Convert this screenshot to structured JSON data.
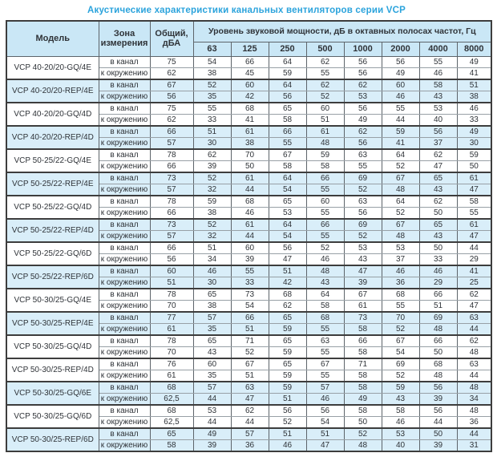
{
  "title": "Акустические характеристики канальных вентиляторов  серии VCP",
  "colors": {
    "title_blue": "#2ba3dc",
    "header_bg": "#cae7f6",
    "shaded_row_bg": "#d9eef9",
    "border_dark": "#3d3d3d",
    "text": "#2f3338"
  },
  "table": {
    "headers": {
      "model": "Модель",
      "zone": "Зона измерения",
      "total": "Общий, дБА",
      "spectrum": "Уровень звуковой мощности, дБ в октавных полосах частот, Гц",
      "frequencies": [
        "63",
        "125",
        "250",
        "500",
        "1000",
        "2000",
        "4000",
        "8000"
      ]
    },
    "models": [
      {
        "name": "VCP 40-20/20-GQ/4E",
        "shaded": false,
        "rows": [
          {
            "zone": "в канал",
            "total": "75",
            "values": [
              "54",
              "66",
              "64",
              "62",
              "56",
              "56",
              "55",
              "49"
            ]
          },
          {
            "zone": "к окружению",
            "total": "62",
            "values": [
              "38",
              "45",
              "59",
              "55",
              "56",
              "49",
              "46",
              "41"
            ]
          }
        ]
      },
      {
        "name": "VCP 40-20/20-REP/4E",
        "shaded": true,
        "rows": [
          {
            "zone": "в канал",
            "total": "67",
            "values": [
              "52",
              "60",
              "64",
              "62",
              "62",
              "60",
              "58",
              "51"
            ]
          },
          {
            "zone": "к окружению",
            "total": "56",
            "values": [
              "35",
              "42",
              "56",
              "52",
              "53",
              "46",
              "43",
              "38"
            ]
          }
        ]
      },
      {
        "name": "VCP 40-20/20-GQ/4D",
        "shaded": false,
        "rows": [
          {
            "zone": "в канал",
            "total": "75",
            "values": [
              "55",
              "68",
              "65",
              "60",
              "56",
              "55",
              "53",
              "46"
            ]
          },
          {
            "zone": "к окружению",
            "total": "62",
            "values": [
              "33",
              "41",
              "58",
              "51",
              "49",
              "44",
              "40",
              "33"
            ]
          }
        ]
      },
      {
        "name": "VCP 40-20/20-REP/4D",
        "shaded": true,
        "rows": [
          {
            "zone": "в канал",
            "total": "66",
            "values": [
              "51",
              "61",
              "66",
              "61",
              "62",
              "59",
              "56",
              "49"
            ]
          },
          {
            "zone": "к окружению",
            "total": "57",
            "values": [
              "30",
              "38",
              "55",
              "48",
              "56",
              "41",
              "37",
              "30"
            ]
          }
        ]
      },
      {
        "name": "VCP 50-25/22-GQ/4E",
        "shaded": false,
        "rows": [
          {
            "zone": "в канал",
            "total": "78",
            "values": [
              "62",
              "70",
              "67",
              "59",
              "63",
              "64",
              "62",
              "59"
            ]
          },
          {
            "zone": "к окружению",
            "total": "66",
            "values": [
              "39",
              "50",
              "58",
              "58",
              "55",
              "52",
              "47",
              "50"
            ]
          }
        ]
      },
      {
        "name": "VCP 50-25/22-REP/4E",
        "shaded": true,
        "rows": [
          {
            "zone": "в канал",
            "total": "73",
            "values": [
              "52",
              "61",
              "64",
              "66",
              "69",
              "67",
              "65",
              "61"
            ]
          },
          {
            "zone": "к окружению",
            "total": "57",
            "values": [
              "32",
              "44",
              "54",
              "55",
              "52",
              "48",
              "43",
              "47"
            ]
          }
        ]
      },
      {
        "name": "VCP 50-25/22-GQ/4D",
        "shaded": false,
        "rows": [
          {
            "zone": "в канал",
            "total": "78",
            "values": [
              "59",
              "68",
              "65",
              "60",
              "63",
              "64",
              "62",
              "58"
            ]
          },
          {
            "zone": "к окружению",
            "total": "66",
            "values": [
              "38",
              "46",
              "53",
              "55",
              "56",
              "52",
              "50",
              "55"
            ]
          }
        ]
      },
      {
        "name": "VCP 50-25/22-REP/4D",
        "shaded": true,
        "rows": [
          {
            "zone": "в канал",
            "total": "73",
            "values": [
              "52",
              "61",
              "64",
              "66",
              "69",
              "67",
              "65",
              "61"
            ]
          },
          {
            "zone": "к окружению",
            "total": "57",
            "values": [
              "32",
              "44",
              "54",
              "55",
              "52",
              "48",
              "43",
              "47"
            ]
          }
        ]
      },
      {
        "name": "VCP 50-25/22-GQ/6D",
        "shaded": false,
        "rows": [
          {
            "zone": "в канал",
            "total": "66",
            "values": [
              "51",
              "60",
              "56",
              "52",
              "53",
              "53",
              "50",
              "44"
            ]
          },
          {
            "zone": "к окружению",
            "total": "56",
            "values": [
              "34",
              "39",
              "47",
              "46",
              "43",
              "37",
              "33",
              "29"
            ]
          }
        ]
      },
      {
        "name": "VCP 50-25/22-REP/6D",
        "shaded": true,
        "rows": [
          {
            "zone": "в канал",
            "total": "60",
            "values": [
              "46",
              "55",
              "51",
              "48",
              "47",
              "46",
              "46",
              "41"
            ]
          },
          {
            "zone": "к окружению",
            "total": "51",
            "values": [
              "30",
              "33",
              "42",
              "43",
              "39",
              "36",
              "29",
              "25"
            ]
          }
        ]
      },
      {
        "name": "VCP 50-30/25-GQ/4E",
        "shaded": false,
        "rows": [
          {
            "zone": "в канал",
            "total": "78",
            "values": [
              "65",
              "73",
              "68",
              "64",
              "67",
              "68",
              "66",
              "62"
            ]
          },
          {
            "zone": "к окружению",
            "total": "70",
            "values": [
              "38",
              "54",
              "62",
              "58",
              "61",
              "55",
              "51",
              "47"
            ]
          }
        ]
      },
      {
        "name": "VCP 50-30/25-REP/4E",
        "shaded": true,
        "rows": [
          {
            "zone": "в канал",
            "total": "77",
            "values": [
              "57",
              "66",
              "65",
              "68",
              "73",
              "70",
              "69",
              "63"
            ]
          },
          {
            "zone": "к окружению",
            "total": "61",
            "values": [
              "35",
              "51",
              "59",
              "55",
              "58",
              "52",
              "48",
              "44"
            ]
          }
        ]
      },
      {
        "name": "VCP 50-30/25-GQ/4D",
        "shaded": false,
        "rows": [
          {
            "zone": "в канал",
            "total": "78",
            "values": [
              "65",
              "71",
              "65",
              "63",
              "66",
              "67",
              "66",
              "62"
            ]
          },
          {
            "zone": "к окружению",
            "total": "70",
            "values": [
              "43",
              "52",
              "59",
              "55",
              "58",
              "54",
              "50",
              "48"
            ]
          }
        ]
      },
      {
        "name": "VCP 50-30/25-REP/4D",
        "shaded": false,
        "rows": [
          {
            "zone": "в канал",
            "total": "76",
            "values": [
              "60",
              "67",
              "65",
              "67",
              "71",
              "69",
              "68",
              "63"
            ]
          },
          {
            "zone": "к окружению",
            "total": "61",
            "values": [
              "35",
              "51",
              "59",
              "55",
              "58",
              "52",
              "48",
              "44"
            ]
          }
        ]
      },
      {
        "name": "VCP 50-30/25-GQ/6E",
        "shaded": true,
        "rows": [
          {
            "zone": "в канал",
            "total": "68",
            "values": [
              "57",
              "63",
              "59",
              "57",
              "58",
              "59",
              "56",
              "48"
            ]
          },
          {
            "zone": "к окружению",
            "total": "62,5",
            "values": [
              "44",
              "47",
              "51",
              "46",
              "49",
              "43",
              "39",
              "34"
            ]
          }
        ]
      },
      {
        "name": "VCP 50-30/25-GQ/6D",
        "shaded": false,
        "rows": [
          {
            "zone": "в канал",
            "total": "68",
            "values": [
              "53",
              "62",
              "56",
              "56",
              "58",
              "58",
              "56",
              "48"
            ]
          },
          {
            "zone": "к окружению",
            "total": "62,5",
            "values": [
              "44",
              "44",
              "52",
              "54",
              "50",
              "46",
              "44",
              "36"
            ]
          }
        ]
      },
      {
        "name": "VCP 50-30/25-REP/6D",
        "shaded": true,
        "rows": [
          {
            "zone": "в канал",
            "total": "65",
            "values": [
              "49",
              "57",
              "51",
              "51",
              "52",
              "53",
              "50",
              "44"
            ]
          },
          {
            "zone": "к окружению",
            "total": "58",
            "values": [
              "39",
              "36",
              "46",
              "47",
              "48",
              "40",
              "39",
              "31"
            ]
          }
        ]
      }
    ]
  }
}
